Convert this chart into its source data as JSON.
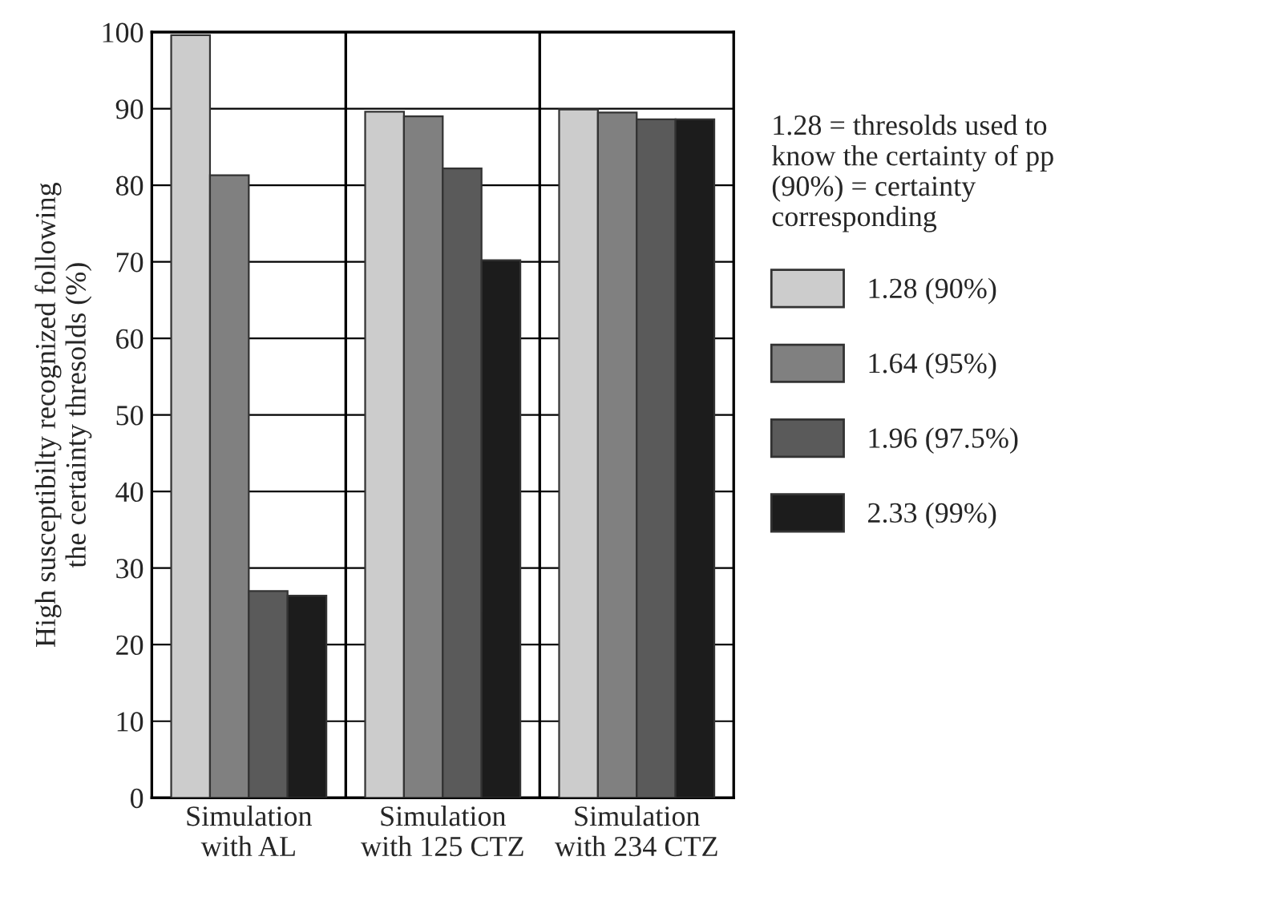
{
  "chart_data": {
    "type": "bar",
    "ylabel": "High susceptibilty recognized following\nthe certainty thresolds (%)",
    "categories": [
      "Simulation\nwith AL",
      "Simulation\nwith 125 CTZ",
      "Simulation\nwith 234 CTZ"
    ],
    "series": [
      {
        "name": "1.28 (90%)",
        "color": "#cccccc",
        "values": [
          99.6,
          89.6,
          89.9
        ]
      },
      {
        "name": "1.64 (95%)",
        "color": "#808080",
        "values": [
          81.3,
          89.0,
          89.5
        ]
      },
      {
        "name": "1.96 (97.5%)",
        "color": "#5a5a5a",
        "values": [
          27.0,
          82.2,
          88.6
        ]
      },
      {
        "name": "2.33 (99%)",
        "color": "#1c1c1c",
        "values": [
          26.4,
          70.2,
          88.6
        ]
      }
    ],
    "legend_title": "1.28 = thresolds used to\nknow the certainty of pp\n(90%) = certainty\ncorresponding",
    "legend": "right",
    "ylim": [
      0,
      100
    ],
    "yticks": [
      0,
      10,
      20,
      30,
      40,
      50,
      60,
      70,
      80,
      90,
      100
    ],
    "grid": "y"
  }
}
